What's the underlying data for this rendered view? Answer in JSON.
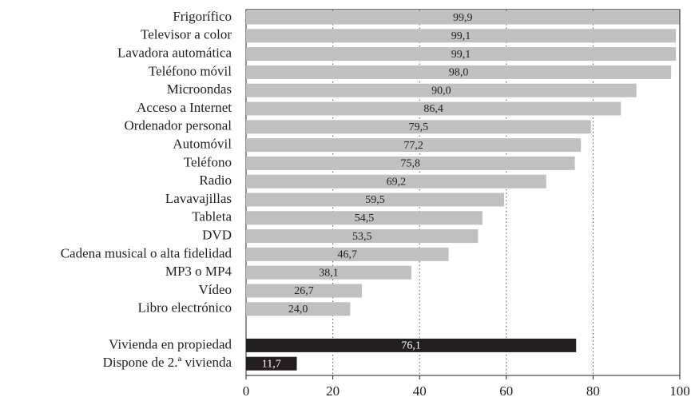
{
  "chart_data": {
    "type": "barh",
    "categories": [
      "Frigorífico",
      "Televisor a color",
      "Lavadora automática",
      "Teléfono móvil",
      "Microondas",
      "Acceso a Internet",
      "Ordenador personal",
      "Automóvil",
      "Teléfono",
      "Radio",
      "Lavavajillas",
      "Tableta",
      "DVD",
      "Cadena musical o alta fidelidad",
      "MP3 o MP4",
      "Vídeo",
      "Libro electrónico",
      null,
      "Vivienda en propiedad",
      "Dispone de 2.ª vivienda"
    ],
    "values": [
      99.9,
      99.1,
      99.1,
      98.0,
      90.0,
      86.4,
      79.5,
      77.2,
      75.8,
      69.2,
      59.5,
      54.5,
      53.5,
      46.7,
      38.1,
      26.7,
      24.0,
      null,
      76.1,
      11.7
    ],
    "value_labels": [
      "99,9",
      "99,1",
      "99,1",
      "98,0",
      "90,0",
      "86,4",
      "79,5",
      "77,2",
      "75,8",
      "69,2",
      "59,5",
      "54,5",
      "53,5",
      "46,7",
      "38,1",
      "26,7",
      "24,0",
      null,
      "76,1",
      "11,7"
    ],
    "colors": [
      "#c0c0c0",
      "#c0c0c0",
      "#c0c0c0",
      "#c0c0c0",
      "#c0c0c0",
      "#c0c0c0",
      "#c0c0c0",
      "#c0c0c0",
      "#c0c0c0",
      "#c0c0c0",
      "#c0c0c0",
      "#c0c0c0",
      "#c0c0c0",
      "#c0c0c0",
      "#c0c0c0",
      "#c0c0c0",
      "#c0c0c0",
      null,
      "#231f20",
      "#231f20"
    ],
    "xlim": [
      0,
      100
    ],
    "xticks": [
      0,
      20,
      40,
      60,
      80,
      100
    ],
    "grid": true
  }
}
